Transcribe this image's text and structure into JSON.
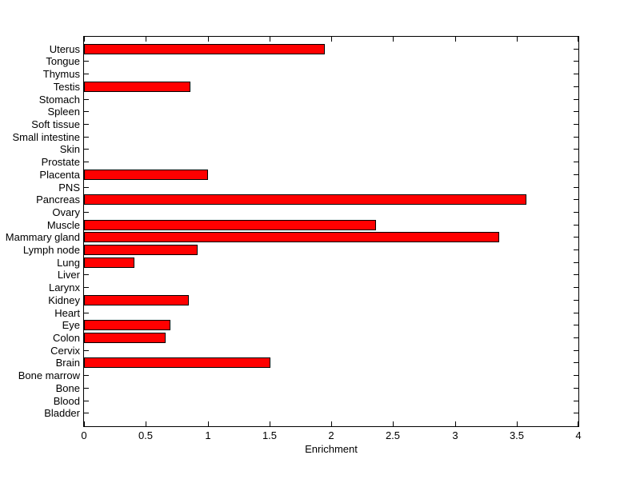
{
  "chart_data": {
    "type": "bar",
    "orientation": "horizontal",
    "title": "",
    "xlabel": "Enrichment",
    "ylabel": "",
    "xlim": [
      0,
      4
    ],
    "xticks": [
      0,
      0.5,
      1,
      1.5,
      2,
      2.5,
      3,
      3.5,
      4
    ],
    "xtick_labels": [
      "0",
      "0.5",
      "1",
      "1.5",
      "2",
      "2.5",
      "3",
      "3.5",
      "4"
    ],
    "grid": false,
    "legend": "none",
    "bar_fill_color": "#ff0000",
    "bar_edge_color": "#000000",
    "axis_color": "#000000",
    "background_color": "#ffffff",
    "categories": [
      "Uterus",
      "Tongue",
      "Thymus",
      "Testis",
      "Stomach",
      "Spleen",
      "Soft tissue",
      "Small intestine",
      "Skin",
      "Prostate",
      "Placenta",
      "PNS",
      "Pancreas",
      "Ovary",
      "Muscle",
      "Mammary gland",
      "Lymph node",
      "Lung",
      "Liver",
      "Larynx",
      "Kidney",
      "Heart",
      "Eye",
      "Colon",
      "Cervix",
      "Brain",
      "Bone marrow",
      "Bone",
      "Blood",
      "Bladder"
    ],
    "values": [
      1.95,
      0,
      0,
      0.86,
      0,
      0,
      0,
      0,
      0,
      0,
      1.0,
      0,
      3.58,
      0,
      2.36,
      3.36,
      0.92,
      0.41,
      0,
      0,
      0.85,
      0,
      0.7,
      0.66,
      0,
      1.51,
      0,
      0,
      0,
      0
    ]
  }
}
